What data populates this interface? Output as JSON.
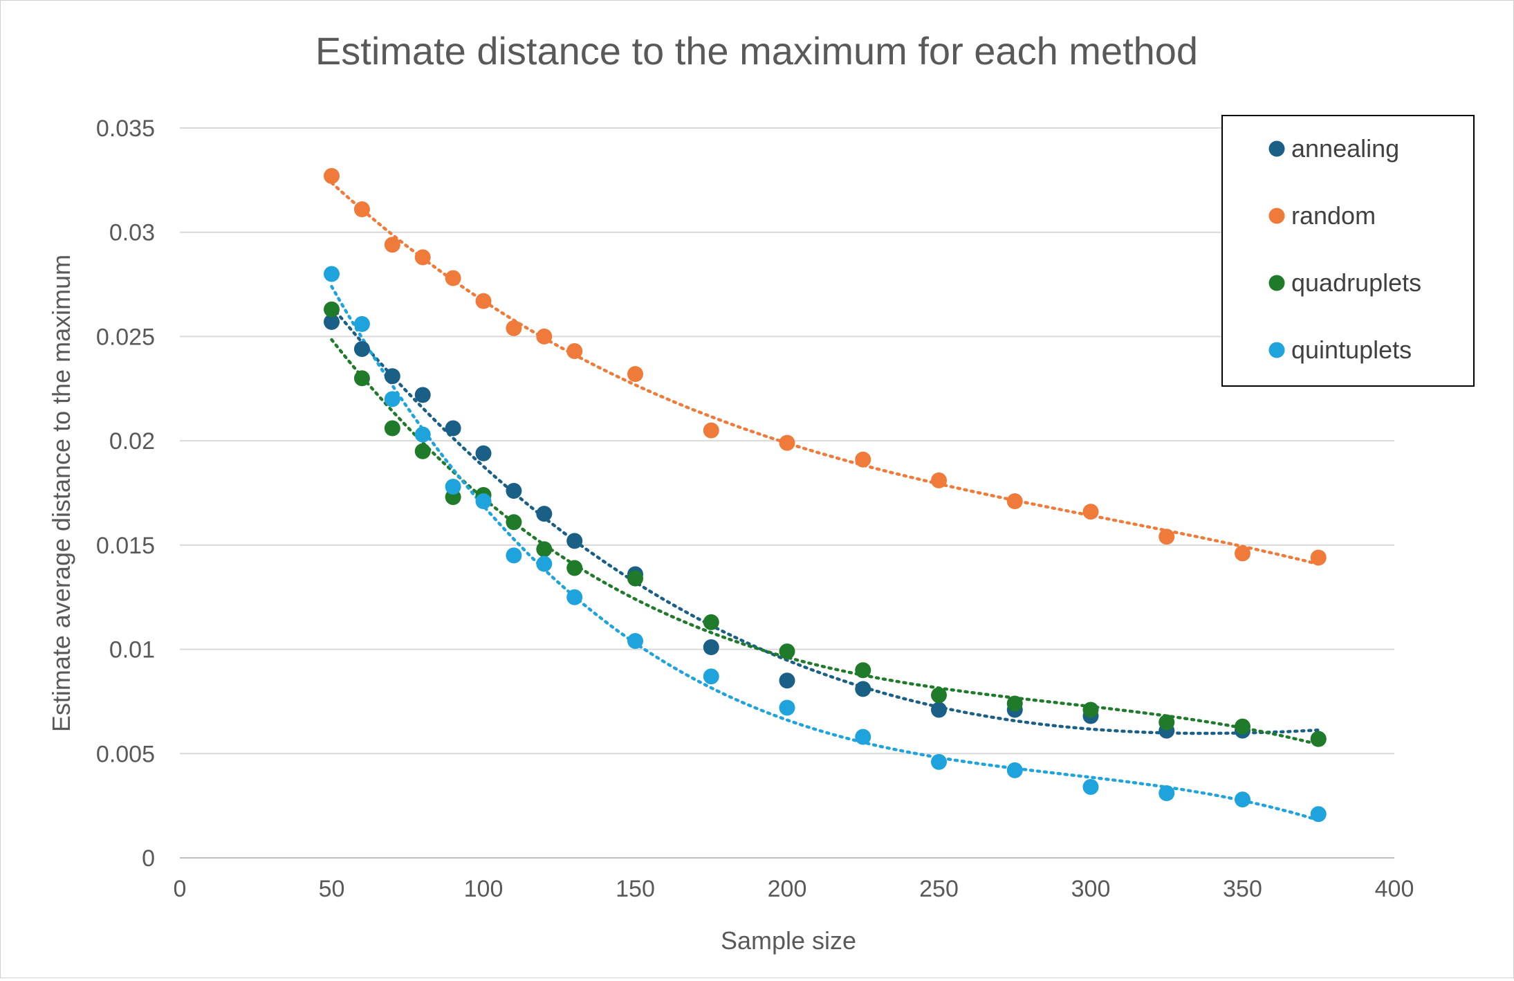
{
  "chart_data": {
    "type": "scatter",
    "title": "Estimate distance to the maximum for each method",
    "xlabel": "Sample size",
    "ylabel": "Estimate average distance to the maximum",
    "xlim": [
      0,
      400
    ],
    "ylim": [
      0,
      0.035
    ],
    "x_ticks": [
      "0",
      "50",
      "100",
      "150",
      "200",
      "250",
      "300",
      "350",
      "400"
    ],
    "y_ticks": [
      "0",
      "0.005",
      "0.01",
      "0.015",
      "0.02",
      "0.025",
      "0.03",
      "0.035"
    ],
    "grid": "horizontal",
    "legend_position": "top-right",
    "trendlines": "dotted polynomial fit per series",
    "series": [
      {
        "name": "annealing",
        "color": "#1a5f86",
        "x": [
          50,
          60,
          70,
          80,
          90,
          100,
          110,
          120,
          130,
          150,
          175,
          200,
          225,
          250,
          275,
          300,
          325,
          350,
          375
        ],
        "y": [
          0.0257,
          0.0244,
          0.0231,
          0.0222,
          0.0206,
          0.0194,
          0.0176,
          0.0165,
          0.0152,
          0.0136,
          0.0101,
          0.0085,
          0.0081,
          0.0071,
          0.0071,
          0.0068,
          0.0061,
          0.0061,
          0.0057
        ]
      },
      {
        "name": "random",
        "color": "#f07a3a",
        "x": [
          50,
          60,
          70,
          80,
          90,
          100,
          110,
          120,
          130,
          150,
          175,
          200,
          225,
          250,
          275,
          300,
          325,
          350,
          375
        ],
        "y": [
          0.0327,
          0.0311,
          0.0294,
          0.0288,
          0.0278,
          0.0267,
          0.0254,
          0.025,
          0.0243,
          0.0232,
          0.0205,
          0.0199,
          0.0191,
          0.0181,
          0.0171,
          0.0166,
          0.0154,
          0.0146,
          0.0144
        ]
      },
      {
        "name": "quadruplets",
        "color": "#1f7a2a",
        "x": [
          50,
          60,
          70,
          80,
          90,
          100,
          110,
          120,
          130,
          150,
          175,
          200,
          225,
          250,
          275,
          300,
          325,
          350,
          375
        ],
        "y": [
          0.0263,
          0.023,
          0.0206,
          0.0195,
          0.0173,
          0.0174,
          0.0161,
          0.0148,
          0.0139,
          0.0134,
          0.0113,
          0.0099,
          0.009,
          0.0078,
          0.0074,
          0.0071,
          0.0065,
          0.0063,
          0.0057
        ]
      },
      {
        "name": "quintuplets",
        "color": "#1ea3dc",
        "x": [
          50,
          60,
          70,
          80,
          90,
          100,
          110,
          120,
          130,
          150,
          175,
          200,
          225,
          250,
          275,
          300,
          325,
          350,
          375
        ],
        "y": [
          0.028,
          0.0256,
          0.022,
          0.0203,
          0.0178,
          0.0171,
          0.0145,
          0.0141,
          0.0125,
          0.0104,
          0.0087,
          0.0072,
          0.0058,
          0.0046,
          0.0042,
          0.0034,
          0.0031,
          0.0028,
          0.0021
        ]
      }
    ]
  }
}
